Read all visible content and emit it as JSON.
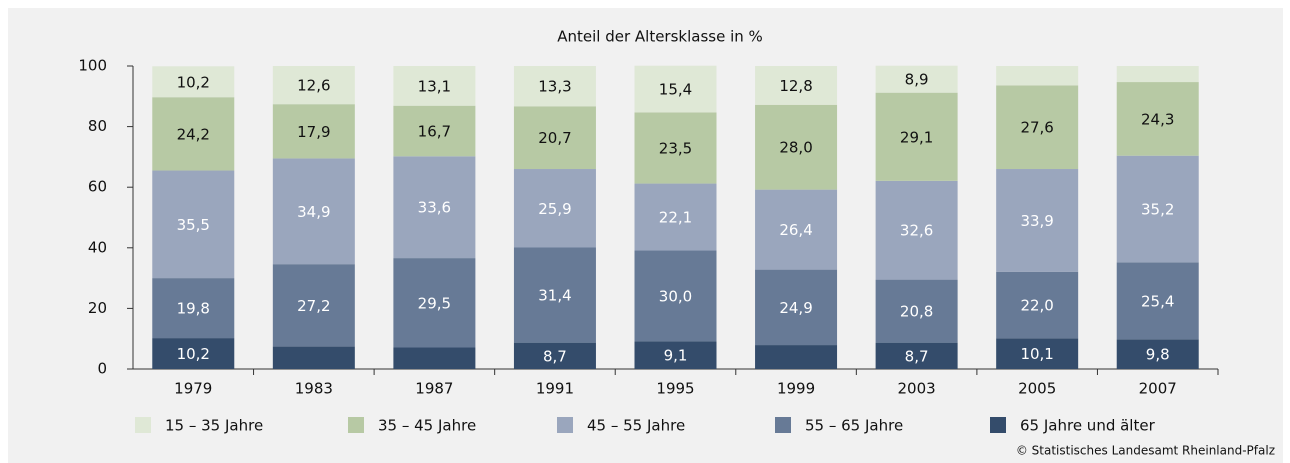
{
  "chart_data": {
    "type": "stacked_bar",
    "title": "Anteil der Altersklasse in %",
    "categories": [
      "1979",
      "1983",
      "1987",
      "1991",
      "1995",
      "1999",
      "2003",
      "2005",
      "2007"
    ],
    "series": [
      {
        "name": "65 Jahre und älter",
        "color": "#344c6b",
        "values": [
          10.2,
          7.4,
          7.1,
          8.7,
          9.1,
          7.9,
          8.7,
          10.1,
          9.8
        ],
        "value_labels": [
          "10,2",
          null,
          null,
          "8,7",
          "9,1",
          null,
          "8,7",
          "10,1",
          "9,8"
        ]
      },
      {
        "name": "55 – 65 Jahre",
        "color": "#677a96",
        "values": [
          19.8,
          27.2,
          29.5,
          31.4,
          30.0,
          24.9,
          20.8,
          22.0,
          25.4
        ],
        "value_labels": [
          "19,8",
          "27,2",
          "29,5",
          "31,4",
          "30,0",
          "24,9",
          "20,8",
          "22,0",
          "25,4"
        ]
      },
      {
        "name": "45 – 55 Jahre",
        "color": "#9aa6bd",
        "values": [
          35.5,
          34.9,
          33.6,
          25.9,
          22.1,
          26.4,
          32.6,
          33.9,
          35.2
        ],
        "value_labels": [
          "35,5",
          "34,9",
          "33,6",
          "25,9",
          "22,1",
          "26,4",
          "32,6",
          "33,9",
          "35,2"
        ]
      },
      {
        "name": "35 – 45 Jahre",
        "color": "#b7c9a4",
        "values": [
          24.2,
          17.9,
          16.7,
          20.7,
          23.5,
          28.0,
          29.1,
          27.6,
          24.3
        ],
        "value_labels": [
          "24,2",
          "17,9",
          "16,7",
          "20,7",
          "23,5",
          "28,0",
          "29,1",
          "27,6",
          "24,3"
        ]
      },
      {
        "name": "15 – 35 Jahre",
        "color": "#dfe8d6",
        "values": [
          10.2,
          12.6,
          13.1,
          13.3,
          15.4,
          12.8,
          8.9,
          6.4,
          5.3
        ],
        "value_labels": [
          "10,2",
          "12,6",
          "13,1",
          "13,3",
          "15,4",
          "12,8",
          "8,9",
          null,
          null
        ]
      }
    ],
    "ylim": [
      0,
      100
    ],
    "yticks": [
      0,
      20,
      40,
      60,
      80,
      100
    ],
    "source": "© Statistisches Landesamt Rheinland-Pfalz"
  }
}
